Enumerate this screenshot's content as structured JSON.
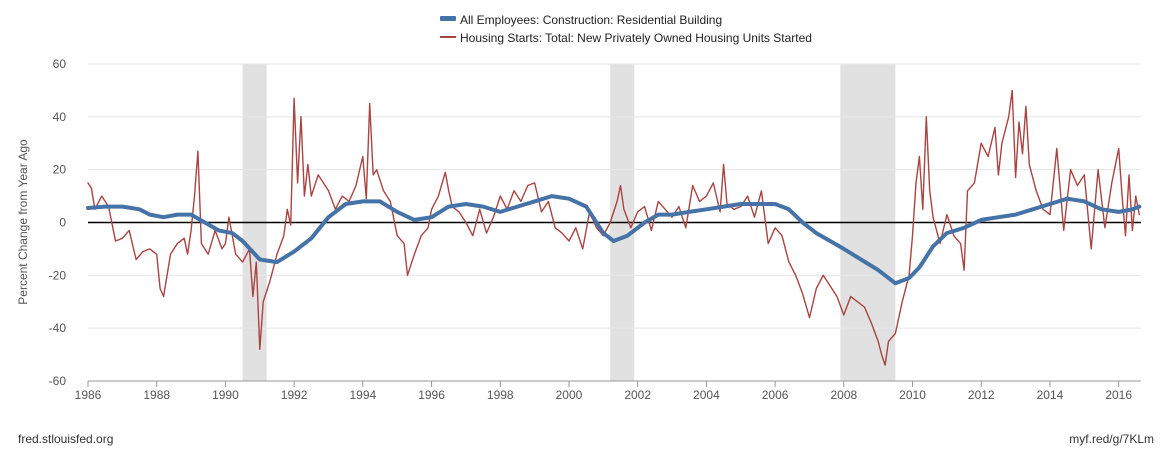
{
  "chart_data": {
    "type": "line",
    "title": "",
    "xlabel": "",
    "ylabel": "Percent Change from Year Ago",
    "xlim": [
      1986,
      2016.65
    ],
    "ylim": [
      -60,
      60
    ],
    "y_ticks": [
      60,
      40,
      20,
      0,
      -20,
      -40,
      -60
    ],
    "x_ticks": [
      1986,
      1988,
      1990,
      1992,
      1994,
      1996,
      1998,
      2000,
      2002,
      2004,
      2006,
      2008,
      2010,
      2012,
      2014,
      2016
    ],
    "grid": true,
    "zero_line": true,
    "legend_position": "top-center",
    "recessions": [
      [
        1990.5,
        1991.2
      ],
      [
        2001.2,
        2001.9
      ],
      [
        2007.9,
        2009.5
      ]
    ],
    "series": [
      {
        "name": "All Employees: Construction: Residential Building",
        "color": "#4572a7",
        "style": "thick",
        "points": [
          [
            1986.0,
            5.5
          ],
          [
            1986.5,
            6
          ],
          [
            1987.0,
            6
          ],
          [
            1987.5,
            5
          ],
          [
            1987.8,
            3
          ],
          [
            1988.2,
            2
          ],
          [
            1988.6,
            3
          ],
          [
            1989.0,
            3
          ],
          [
            1989.4,
            0
          ],
          [
            1989.8,
            -3
          ],
          [
            1990.2,
            -4
          ],
          [
            1990.5,
            -7
          ],
          [
            1991.0,
            -14
          ],
          [
            1991.5,
            -15
          ],
          [
            1992.0,
            -11
          ],
          [
            1992.5,
            -6
          ],
          [
            1993.0,
            2
          ],
          [
            1993.5,
            7
          ],
          [
            1994.0,
            8
          ],
          [
            1994.5,
            8
          ],
          [
            1995.0,
            4
          ],
          [
            1995.5,
            1
          ],
          [
            1996.0,
            2
          ],
          [
            1996.5,
            6
          ],
          [
            1997.0,
            7
          ],
          [
            1997.5,
            6
          ],
          [
            1998.0,
            4
          ],
          [
            1998.5,
            6
          ],
          [
            1999.0,
            8
          ],
          [
            1999.5,
            10
          ],
          [
            2000.0,
            9
          ],
          [
            2000.5,
            6
          ],
          [
            2001.0,
            -4
          ],
          [
            2001.3,
            -7
          ],
          [
            2001.7,
            -5
          ],
          [
            2002.2,
            0
          ],
          [
            2002.6,
            3
          ],
          [
            2003.0,
            3
          ],
          [
            2003.5,
            4
          ],
          [
            2004.0,
            5
          ],
          [
            2004.5,
            6
          ],
          [
            2005.0,
            7
          ],
          [
            2005.5,
            7
          ],
          [
            2006.0,
            7
          ],
          [
            2006.4,
            5
          ],
          [
            2006.8,
            0
          ],
          [
            2007.2,
            -4
          ],
          [
            2007.6,
            -7
          ],
          [
            2008.0,
            -10
          ],
          [
            2008.5,
            -14
          ],
          [
            2009.0,
            -18
          ],
          [
            2009.5,
            -23
          ],
          [
            2009.9,
            -21
          ],
          [
            2010.2,
            -17
          ],
          [
            2010.6,
            -9
          ],
          [
            2011.0,
            -4
          ],
          [
            2011.5,
            -2
          ],
          [
            2012.0,
            1
          ],
          [
            2012.5,
            2
          ],
          [
            2013.0,
            3
          ],
          [
            2013.5,
            5
          ],
          [
            2014.0,
            7
          ],
          [
            2014.5,
            9
          ],
          [
            2015.0,
            8
          ],
          [
            2015.5,
            5
          ],
          [
            2016.0,
            4
          ],
          [
            2016.4,
            5
          ],
          [
            2016.6,
            6
          ]
        ]
      },
      {
        "name": "Housing Starts: Total: New Privately Owned Housing Units Started",
        "color": "#a94442",
        "style": "thin",
        "points": [
          [
            1986.0,
            15
          ],
          [
            1986.1,
            13
          ],
          [
            1986.2,
            5
          ],
          [
            1986.4,
            10
          ],
          [
            1986.6,
            6
          ],
          [
            1986.8,
            -7
          ],
          [
            1987.0,
            -6
          ],
          [
            1987.2,
            -3
          ],
          [
            1987.4,
            -14
          ],
          [
            1987.6,
            -11
          ],
          [
            1987.8,
            -10
          ],
          [
            1988.0,
            -12
          ],
          [
            1988.1,
            -25
          ],
          [
            1988.2,
            -28
          ],
          [
            1988.4,
            -12
          ],
          [
            1988.6,
            -8
          ],
          [
            1988.8,
            -6
          ],
          [
            1988.9,
            -12
          ],
          [
            1989.0,
            -3
          ],
          [
            1989.1,
            10
          ],
          [
            1989.2,
            27
          ],
          [
            1989.3,
            -8
          ],
          [
            1989.5,
            -12
          ],
          [
            1989.7,
            -3
          ],
          [
            1989.9,
            -10
          ],
          [
            1990.0,
            -8
          ],
          [
            1990.1,
            2
          ],
          [
            1990.3,
            -12
          ],
          [
            1990.5,
            -15
          ],
          [
            1990.7,
            -10
          ],
          [
            1990.8,
            -28
          ],
          [
            1990.9,
            -15
          ],
          [
            1991.0,
            -48
          ],
          [
            1991.1,
            -30
          ],
          [
            1991.3,
            -22
          ],
          [
            1991.5,
            -12
          ],
          [
            1991.7,
            -5
          ],
          [
            1991.8,
            5
          ],
          [
            1991.9,
            -1
          ],
          [
            1992.0,
            47
          ],
          [
            1992.1,
            15
          ],
          [
            1992.2,
            40
          ],
          [
            1992.3,
            10
          ],
          [
            1992.4,
            22
          ],
          [
            1992.5,
            10
          ],
          [
            1992.7,
            18
          ],
          [
            1992.9,
            14
          ],
          [
            1993.0,
            12
          ],
          [
            1993.2,
            5
          ],
          [
            1993.4,
            10
          ],
          [
            1993.6,
            8
          ],
          [
            1993.8,
            14
          ],
          [
            1994.0,
            25
          ],
          [
            1994.1,
            9
          ],
          [
            1994.2,
            45
          ],
          [
            1994.3,
            18
          ],
          [
            1994.4,
            20
          ],
          [
            1994.6,
            12
          ],
          [
            1994.8,
            8
          ],
          [
            1995.0,
            -5
          ],
          [
            1995.2,
            -8
          ],
          [
            1995.3,
            -20
          ],
          [
            1995.5,
            -12
          ],
          [
            1995.7,
            -5
          ],
          [
            1995.9,
            -2
          ],
          [
            1996.0,
            5
          ],
          [
            1996.2,
            10
          ],
          [
            1996.4,
            19
          ],
          [
            1996.5,
            12
          ],
          [
            1996.6,
            6
          ],
          [
            1996.8,
            4
          ],
          [
            1997.0,
            0
          ],
          [
            1997.2,
            -5
          ],
          [
            1997.4,
            5
          ],
          [
            1997.6,
            -4
          ],
          [
            1997.8,
            2
          ],
          [
            1998.0,
            10
          ],
          [
            1998.2,
            5
          ],
          [
            1998.4,
            12
          ],
          [
            1998.6,
            8
          ],
          [
            1998.8,
            14
          ],
          [
            1999.0,
            15
          ],
          [
            1999.2,
            4
          ],
          [
            1999.4,
            8
          ],
          [
            1999.6,
            -2
          ],
          [
            1999.8,
            -4
          ],
          [
            2000.0,
            -7
          ],
          [
            2000.2,
            -2
          ],
          [
            2000.4,
            -10
          ],
          [
            2000.6,
            4
          ],
          [
            2000.8,
            -2
          ],
          [
            2001.0,
            -5
          ],
          [
            2001.2,
            0
          ],
          [
            2001.4,
            8
          ],
          [
            2001.5,
            14
          ],
          [
            2001.6,
            5
          ],
          [
            2001.8,
            -2
          ],
          [
            2002.0,
            4
          ],
          [
            2002.2,
            6
          ],
          [
            2002.4,
            -3
          ],
          [
            2002.6,
            8
          ],
          [
            2002.8,
            5
          ],
          [
            2003.0,
            2
          ],
          [
            2003.2,
            6
          ],
          [
            2003.4,
            -2
          ],
          [
            2003.6,
            14
          ],
          [
            2003.8,
            8
          ],
          [
            2004.0,
            10
          ],
          [
            2004.2,
            15
          ],
          [
            2004.4,
            4
          ],
          [
            2004.5,
            22
          ],
          [
            2004.6,
            7
          ],
          [
            2004.8,
            5
          ],
          [
            2005.0,
            6
          ],
          [
            2005.2,
            10
          ],
          [
            2005.4,
            2
          ],
          [
            2005.6,
            12
          ],
          [
            2005.8,
            -8
          ],
          [
            2006.0,
            -2
          ],
          [
            2006.2,
            -5
          ],
          [
            2006.4,
            -15
          ],
          [
            2006.6,
            -20
          ],
          [
            2006.8,
            -27
          ],
          [
            2007.0,
            -36
          ],
          [
            2007.2,
            -25
          ],
          [
            2007.4,
            -20
          ],
          [
            2007.6,
            -24
          ],
          [
            2007.8,
            -28
          ],
          [
            2008.0,
            -35
          ],
          [
            2008.2,
            -28
          ],
          [
            2008.4,
            -30
          ],
          [
            2008.6,
            -32
          ],
          [
            2008.8,
            -38
          ],
          [
            2009.0,
            -45
          ],
          [
            2009.1,
            -50
          ],
          [
            2009.2,
            -54
          ],
          [
            2009.3,
            -45
          ],
          [
            2009.5,
            -42
          ],
          [
            2009.7,
            -30
          ],
          [
            2009.9,
            -20
          ],
          [
            2010.0,
            -5
          ],
          [
            2010.1,
            15
          ],
          [
            2010.2,
            25
          ],
          [
            2010.3,
            5
          ],
          [
            2010.4,
            40
          ],
          [
            2010.5,
            12
          ],
          [
            2010.6,
            2
          ],
          [
            2010.8,
            -8
          ],
          [
            2011.0,
            3
          ],
          [
            2011.2,
            -5
          ],
          [
            2011.4,
            -8
          ],
          [
            2011.5,
            -18
          ],
          [
            2011.6,
            12
          ],
          [
            2011.8,
            15
          ],
          [
            2012.0,
            30
          ],
          [
            2012.2,
            25
          ],
          [
            2012.4,
            36
          ],
          [
            2012.5,
            18
          ],
          [
            2012.6,
            30
          ],
          [
            2012.8,
            40
          ],
          [
            2012.9,
            50
          ],
          [
            2013.0,
            17
          ],
          [
            2013.1,
            38
          ],
          [
            2013.2,
            26
          ],
          [
            2013.3,
            44
          ],
          [
            2013.4,
            22
          ],
          [
            2013.6,
            12
          ],
          [
            2013.8,
            5
          ],
          [
            2014.0,
            3
          ],
          [
            2014.2,
            28
          ],
          [
            2014.4,
            -3
          ],
          [
            2014.6,
            20
          ],
          [
            2014.8,
            14
          ],
          [
            2015.0,
            18
          ],
          [
            2015.2,
            -10
          ],
          [
            2015.4,
            20
          ],
          [
            2015.6,
            -2
          ],
          [
            2015.8,
            15
          ],
          [
            2016.0,
            28
          ],
          [
            2016.1,
            10
          ],
          [
            2016.2,
            -5
          ],
          [
            2016.3,
            18
          ],
          [
            2016.4,
            -3
          ],
          [
            2016.5,
            10
          ],
          [
            2016.6,
            3
          ]
        ]
      }
    ]
  },
  "footer": {
    "source_left": "fred.stlouisfed.org",
    "source_right": "myf.red/g/7KLm"
  }
}
